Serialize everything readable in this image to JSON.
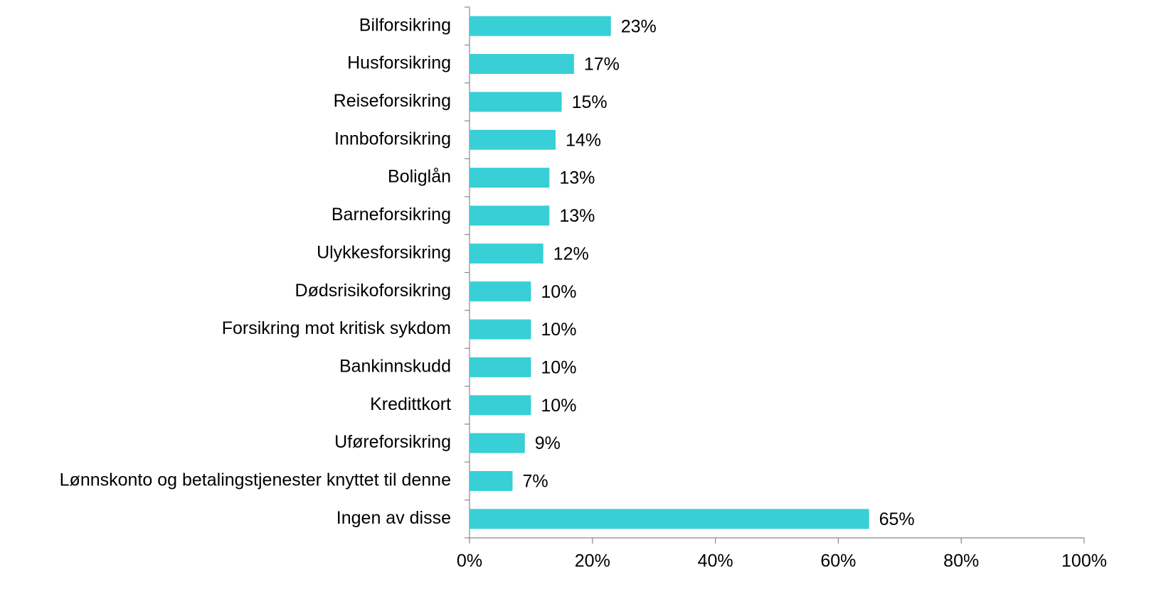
{
  "chart_data": {
    "type": "bar",
    "orientation": "horizontal",
    "categories": [
      "Bilforsikring",
      "Husforsikring",
      "Reiseforsikring",
      "Innboforsikring",
      "Boliglån",
      "Barneforsikring",
      "Ulykkesforsikring",
      "Dødsrisikoforsikring",
      "Forsikring mot kritisk sykdom",
      "Bankinnskudd",
      "Kredittkort",
      "Uføreforsikring",
      "Lønnskonto og betalingstjenester knyttet til denne",
      "Ingen av disse"
    ],
    "values": [
      23,
      17,
      15,
      14,
      13,
      13,
      12,
      10,
      10,
      10,
      10,
      9,
      7,
      65
    ],
    "value_labels": [
      "23%",
      "17%",
      "15%",
      "14%",
      "13%",
      "13%",
      "12%",
      "10%",
      "10%",
      "10%",
      "10%",
      "9%",
      "7%",
      "65%"
    ],
    "color": "#38cfd6",
    "xlim": [
      0,
      100
    ],
    "xticks": [
      {
        "value": 0,
        "label": "0%"
      },
      {
        "value": 20,
        "label": "20%"
      },
      {
        "value": 40,
        "label": "40%"
      },
      {
        "value": 60,
        "label": "60%"
      },
      {
        "value": 80,
        "label": "80%"
      },
      {
        "value": 100,
        "label": "100%"
      }
    ],
    "grid": false
  }
}
